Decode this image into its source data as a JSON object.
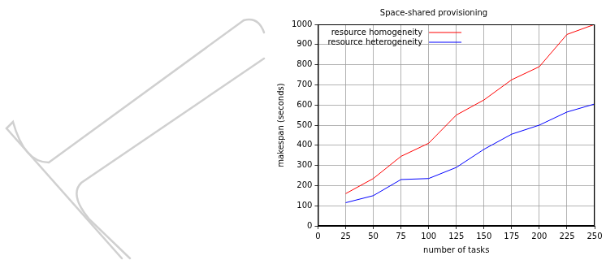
{
  "chart_data": {
    "type": "line",
    "title": "Space-shared provisioning",
    "x_label": "number of tasks",
    "y_label": "makespan (seconds)",
    "x": [
      25,
      50,
      75,
      100,
      125,
      150,
      175,
      200,
      225,
      250
    ],
    "series": [
      {
        "name": "resource homogeneity",
        "color": "#ff0000",
        "values": [
          160,
          235,
          345,
          410,
          550,
          625,
          725,
          790,
          950,
          1000
        ]
      },
      {
        "name": "resource heterogeneity",
        "color": "#0000ff",
        "values": [
          115,
          150,
          230,
          235,
          290,
          380,
          455,
          500,
          565,
          605
        ]
      }
    ],
    "xlim": [
      0,
      250
    ],
    "xticks": [
      0,
      25,
      50,
      75,
      100,
      125,
      150,
      175,
      200,
      225,
      250
    ],
    "ylim": [
      0,
      1000
    ],
    "yticks": [
      0,
      100,
      200,
      300,
      400,
      500,
      600,
      700,
      800,
      900,
      1000
    ],
    "grid": true,
    "legend": "upper left",
    "marker": "none",
    "line_style": "solid"
  }
}
